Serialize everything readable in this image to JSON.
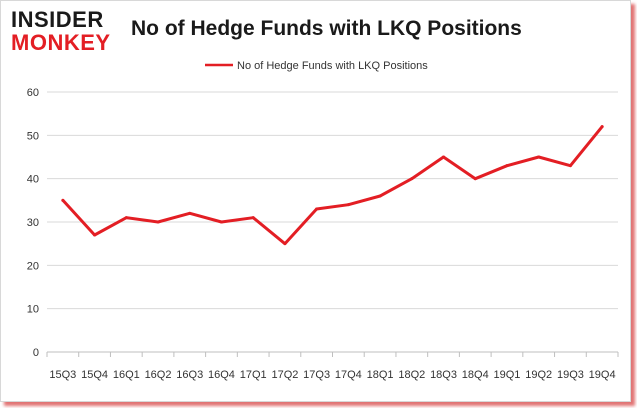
{
  "logo": {
    "top": "INSIDER",
    "bottom": "MONKEY"
  },
  "colors": {
    "line": "#e31e24",
    "grid": "#d9d9d9",
    "axis": "#bfbfbf"
  },
  "chart_data": {
    "type": "line",
    "title": "No of Hedge Funds with LKQ Positions",
    "categories": [
      "15Q3",
      "15Q4",
      "16Q1",
      "16Q2",
      "16Q3",
      "16Q4",
      "17Q1",
      "17Q2",
      "17Q3",
      "17Q4",
      "18Q1",
      "18Q2",
      "18Q3",
      "18Q4",
      "19Q1",
      "19Q2",
      "19Q3",
      "19Q4"
    ],
    "series": [
      {
        "name": "No of Hedge Funds with LKQ Positions",
        "values": [
          35,
          27,
          31,
          30,
          32,
          30,
          31,
          25,
          33,
          34,
          36,
          40,
          45,
          40,
          43,
          45,
          43,
          52
        ]
      }
    ],
    "ylim": [
      0,
      60
    ],
    "yticks": [
      0,
      10,
      20,
      30,
      40,
      50,
      60
    ],
    "grid": true,
    "legend": "top-center",
    "xlabel": "",
    "ylabel": ""
  }
}
